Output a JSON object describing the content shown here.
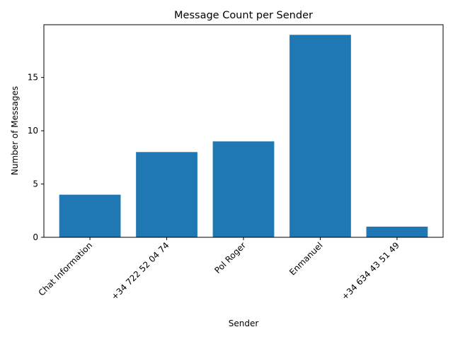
{
  "chart_data": {
    "type": "bar",
    "title": "Message Count per Sender",
    "xlabel": "Sender",
    "ylabel": "Number of Messages",
    "categories": [
      "Chat Information",
      "+34 722 52 04 74",
      "Pol Roger",
      "Enmanuel",
      "+34 634 43 51 49"
    ],
    "values": [
      4,
      8,
      9,
      19,
      1
    ],
    "ylim": [
      0,
      19.95
    ],
    "yticks": [
      0,
      5,
      10,
      15
    ],
    "bar_color": "#1f77b4",
    "grid": false,
    "legend": false
  }
}
